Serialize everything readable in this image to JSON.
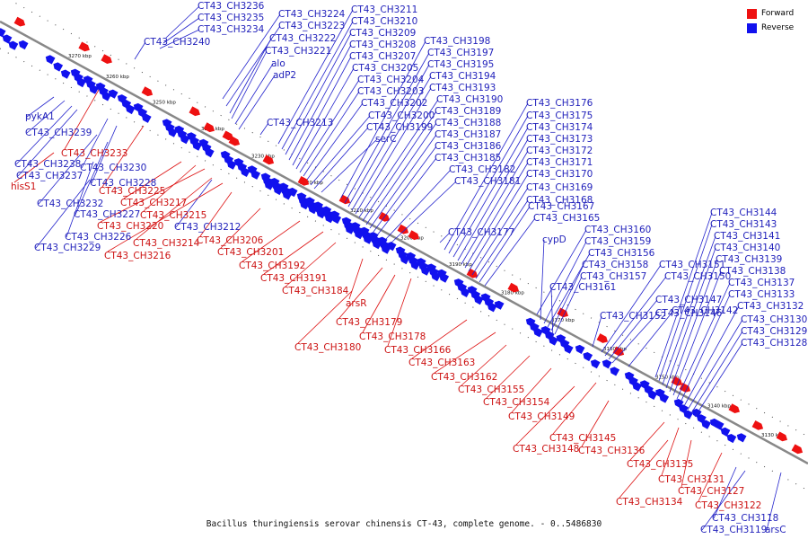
{
  "caption": "Bacillus thuringiensis serovar chinensis CT-43, complete genome. - 0..5486830",
  "legend": [
    {
      "label": "Forward",
      "color": "#ee1111"
    },
    {
      "label": "Reverse",
      "color": "#1111ee"
    }
  ],
  "colors": {
    "forward": "#ee1111",
    "reverse": "#1111ee",
    "axis": "#888888",
    "leader": "#2222cc"
  },
  "ticks": [
    "3270 kbp",
    "3260 kbp",
    "3250 kbp",
    "3240 kbp",
    "3230 kbp",
    "3220 kbp",
    "3210 kbp",
    "3200 kbp",
    "3190 kbp",
    "3180 kbp",
    "3170 kbp",
    "3160 kbp",
    "3150 kbp",
    "3140 kbp",
    "3130 kbp"
  ],
  "reverse_labels": [
    "CT43_CH3236",
    "CT43_CH3235",
    "CT43_CH3234",
    "CT43_CH3240",
    "CT43_CH3224",
    "CT43_CH3223",
    "CT43_CH3222",
    "CT43_CH3221",
    "alo",
    "adP2",
    "CT43_CH3211",
    "CT43_CH3210",
    "CT43_CH3209",
    "CT43_CH3208",
    "CT43_CH3207",
    "CT43_CH3205",
    "CT43_CH3204",
    "CT43_CH3203",
    "CT43_CH3202",
    "CT43_CH3200",
    "CT43_CH3199",
    "serC",
    "CT43_CH3198",
    "CT43_CH3197",
    "CT43_CH3195",
    "CT43_CH3194",
    "CT43_CH3193",
    "CT43_CH3190",
    "CT43_CH3189",
    "CT43_CH3188",
    "CT43_CH3187",
    "CT43_CH3186",
    "CT43_CH3185",
    "CT43_CH3182",
    "CT43_CH3181",
    "CT43_CH3213",
    "CT43_CH3176",
    "CT43_CH3175",
    "CT43_CH3174",
    "CT43_CH3173",
    "CT43_CH3172",
    "CT43_CH3171",
    "CT43_CH3170",
    "CT43_CH3169",
    "CT43_CH3168",
    "CT43_CH3167",
    "CT43_CH3165",
    "CT43_CH3177",
    "CT43_CH3160",
    "cypD",
    "CT43_CH3159",
    "CT43_CH3156",
    "CT43_CH3158",
    "CT43_CH3157",
    "CT43_CH3161",
    "CT43_CH3151",
    "CT43_CH3150",
    "CT43_CH3147",
    "CT43_CH3146",
    "CT43_CH3152",
    "CT43_CH3142",
    "CT43_CH3144",
    "CT43_CH3143",
    "CT43_CH3141",
    "CT43_CH3140",
    "CT43_CH3139",
    "CT43_CH3138",
    "CT43_CH3137",
    "CT43_CH3133",
    "CT43_CH3132",
    "CT43_CH3130",
    "CT43_CH3129",
    "CT43_CH3128",
    "pykA1",
    "CT43_CH3239",
    "CT43_CH3238",
    "CT43_CH3237",
    "CT43_CH3230",
    "CT43_CH3228",
    "CT43_CH3232",
    "CT43_CH3227",
    "CT43_CH3212",
    "CT43_CH3226",
    "CT43_CH3229",
    "CT43_CH3118",
    "CT43_CH3119",
    "arsC"
  ],
  "forward_labels": [
    "CT43_CH3233",
    "hisS1",
    "CT43_CH3225",
    "CT43_CH3217",
    "CT43_CH3215",
    "CT43_CH3220",
    "CT43_CH3214",
    "CT43_CH3216",
    "CT43_CH3206",
    "CT43_CH3201",
    "CT43_CH3192",
    "CT43_CH3191",
    "CT43_CH3184",
    "arsR",
    "CT43_CH3179",
    "CT43_CH3178",
    "CT43_CH3180",
    "CT43_CH3166",
    "CT43_CH3163",
    "CT43_CH3162",
    "CT43_CH3155",
    "CT43_CH3154",
    "CT43_CH3149",
    "CT43_CH3145",
    "CT43_CH3148",
    "CT43_CH3136",
    "CT43_CH3135",
    "CT43_CH3131",
    "CT43_CH3127",
    "CT43_CH3134",
    "CT43_CH3122"
  ]
}
